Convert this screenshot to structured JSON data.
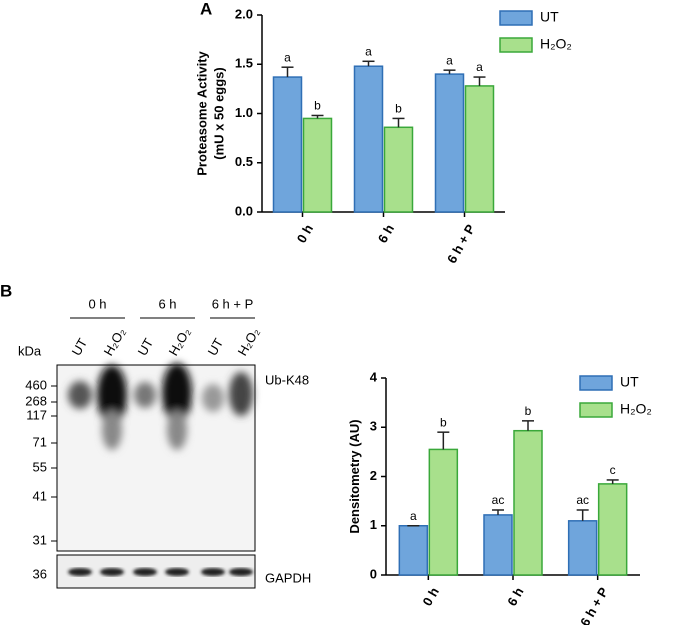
{
  "panel_labels": [
    "A",
    "B"
  ],
  "chart_data": [
    {
      "type": "bar",
      "ylabel": [
        "Proteasome Activity",
        "(mU x 50 eggs)"
      ],
      "categories": [
        "0 h",
        "6 h",
        "6 h + P"
      ],
      "series": [
        {
          "name": "UT",
          "color": "#6fa5dc",
          "edgecolor": "#2f6fb5",
          "values": [
            1.37,
            1.48,
            1.4
          ],
          "errors": [
            0.1,
            0.05,
            0.04
          ],
          "letters": [
            "a",
            "a",
            "a"
          ]
        },
        {
          "name": "H₂O₂",
          "color": "#a8e08c",
          "edgecolor": "#3aa83a",
          "values": [
            0.95,
            0.86,
            1.28
          ],
          "errors": [
            0.03,
            0.09,
            0.09
          ],
          "letters": [
            "b",
            "b",
            "a"
          ]
        }
      ],
      "ylim": [
        0,
        2.0
      ],
      "yticks": [
        {
          "value": 0,
          "label": "0.0"
        },
        0.5,
        {
          "value": 1,
          "label": "1.0"
        },
        1.5,
        {
          "value": 2,
          "label": "2.0"
        }
      ],
      "legend": "upper right"
    },
    {
      "type": "bar",
      "ylabel": [
        "Densitometry (AU)"
      ],
      "categories": [
        "0 h",
        "6 h",
        "6 h + P"
      ],
      "series": [
        {
          "name": "UT",
          "color": "#6fa5dc",
          "edgecolor": "#2f6fb5",
          "values": [
            1.0,
            1.22,
            1.1
          ],
          "errors": [
            0,
            0.1,
            0.22
          ],
          "letters": [
            "a",
            "ac",
            "ac"
          ]
        },
        {
          "name": "H₂O₂",
          "color": "#a8e08c",
          "edgecolor": "#3aa83a",
          "values": [
            2.55,
            2.93,
            1.85
          ],
          "errors": [
            0.35,
            0.2,
            0.08
          ],
          "letters": [
            "b",
            "b",
            "c"
          ]
        }
      ],
      "ylim": [
        0,
        4
      ],
      "yticks": [
        0,
        1,
        2,
        3,
        4
      ],
      "legend": "upper right"
    }
  ],
  "blot": {
    "groups": [
      "0 h",
      "6 h",
      "6 h + P"
    ],
    "lanes": [
      "UT",
      "H₂O₂",
      "UT",
      "H₂O₂",
      "UT",
      "H₂O₂"
    ],
    "unit": "kDa",
    "markers": [
      "460",
      "268",
      "117",
      "71",
      "55",
      "41",
      "31"
    ],
    "loading_marker": "36",
    "target": "Ub-K48",
    "loading": "GAPDH"
  }
}
